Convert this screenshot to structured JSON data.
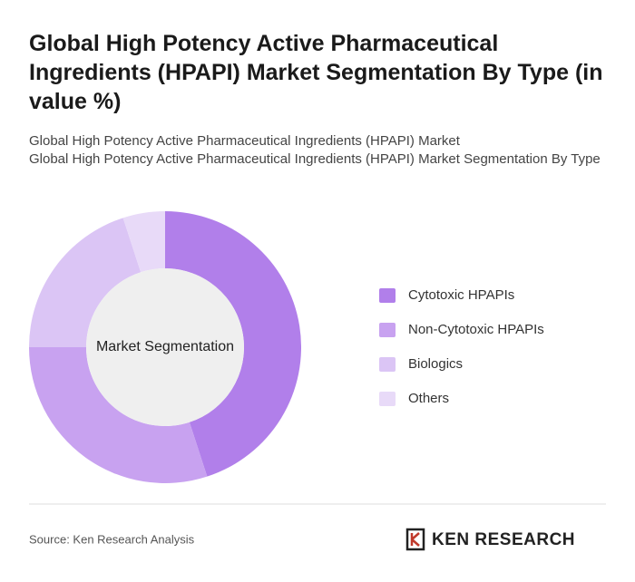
{
  "chart_data": {
    "type": "donut",
    "title": "Global High Potency Active Pharmaceutical Ingredients (HPAPI) Market Segmentation By Type (in value %)",
    "subtitle": [
      "Global High Potency Active Pharmaceutical Ingredients (HPAPI) Market",
      "Global High Potency Active Pharmaceutical Ingredients (HPAPI) Market Segmentation By Type"
    ],
    "center_label": "Market Segmentation",
    "categories": [
      "Cytotoxic HPAPIs",
      "Non-Cytotoxic HPAPIs",
      "Biologics",
      "Others"
    ],
    "values": [
      45,
      30,
      20,
      5
    ],
    "colors": [
      "#b17fea",
      "#c8a2f0",
      "#dbc5f5",
      "#e8daf8"
    ],
    "source": "Source: Ken Research Analysis",
    "brand": "KEN RESEARCH"
  }
}
